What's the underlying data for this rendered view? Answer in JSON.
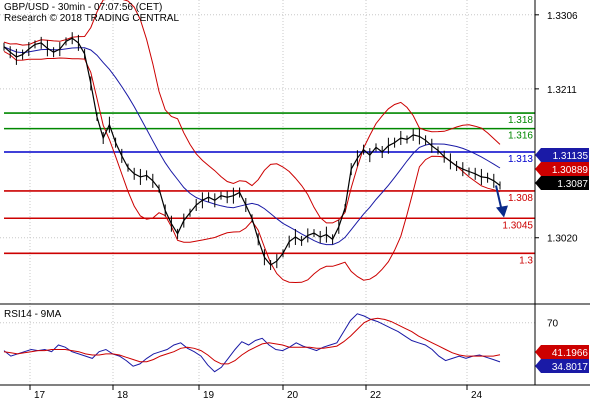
{
  "header": {
    "title_line": "GBP/USD - 30min - 07:07:56 (CET)",
    "credit_line": "Research © 2018 TRADING CENTRAL"
  },
  "rsi_panel": {
    "title": "RSI14 - 9MA"
  },
  "colors": {
    "price": "#000000",
    "bollinger": "#cc0000",
    "moving_average": "#1a1aa6",
    "resistance_green": "#008800",
    "pivot_blue": "#0000cc",
    "support_red": "#cc0000",
    "rsi_line": "#1a1aa6",
    "rsi_ma": "#cc0000",
    "arrow": "#0a2a8a",
    "grid": "#c8c8c8"
  },
  "badges": [
    {
      "value": "1.31135",
      "bg": "#1a1aa6",
      "fg": "#ffffff"
    },
    {
      "value": "1.30889",
      "bg": "#cc0000",
      "fg": "#ffffff"
    },
    {
      "value": "1.3087",
      "bg": "#000000",
      "fg": "#ffffff"
    },
    {
      "value": "41.1966",
      "bg": "#cc0000",
      "fg": "#ffffff"
    },
    {
      "value": "34.8017",
      "bg": "#1a1aa6",
      "fg": "#ffffff"
    }
  ],
  "chart_data": [
    {
      "type": "line",
      "panel": "price",
      "x_ticks": [
        "17",
        "18",
        "19",
        "20",
        "22",
        "24"
      ],
      "y_ticks": [
        "1.3306",
        "1.3211",
        "1.3020"
      ],
      "y_tick_values": [
        1.3306,
        1.3211,
        1.302
      ],
      "ylim": [
        1.2935,
        1.3325
      ],
      "grid": true,
      "levels": [
        {
          "label": "1.318",
          "value": 1.318,
          "color": "green"
        },
        {
          "label": "1.316",
          "value": 1.316,
          "color": "green"
        },
        {
          "label": "1.313",
          "value": 1.313,
          "color": "blue"
        },
        {
          "label": "1.308",
          "value": 1.308,
          "color": "red"
        },
        {
          "label": "1.3045",
          "value": 1.3045,
          "color": "red"
        },
        {
          "label": "1.3",
          "value": 1.3,
          "color": "red"
        }
      ],
      "series": [
        {
          "values": [
            1.3265,
            1.3258,
            1.3252,
            1.3255,
            1.3262,
            1.3268,
            1.327,
            1.3263,
            1.3258,
            1.3262,
            1.3272,
            1.3276,
            1.327,
            1.3256,
            1.3218,
            1.3175,
            1.3148,
            1.3165,
            1.3142,
            1.3125,
            1.311,
            1.3102,
            1.3098,
            1.31,
            1.3093,
            1.3083,
            1.3055,
            1.3038,
            1.3025,
            1.3042,
            1.3052,
            1.3062,
            1.3068,
            1.3072,
            1.3068,
            1.3074,
            1.3072,
            1.3074,
            1.3078,
            1.3062,
            1.3045,
            1.3018,
            1.2995,
            1.2985,
            1.299,
            1.3,
            1.3015,
            1.3021,
            1.3016,
            1.3023,
            1.3026,
            1.3021,
            1.3024,
            1.3018,
            1.3034,
            1.3058,
            1.3108,
            1.3122,
            1.3133,
            1.3126,
            1.3136,
            1.313,
            1.3138,
            1.3142,
            1.3148,
            1.3146,
            1.3152,
            1.315,
            1.3145,
            1.3138,
            1.3132,
            1.3124,
            1.3118,
            1.3112,
            1.3108,
            1.3105,
            1.3102,
            1.3098,
            1.3097,
            1.3093,
            1.3087
          ]
        },
        {
          "values": []
        }
      ],
      "annotations": [
        "1.31135",
        "1.30889",
        "1.3087"
      ]
    },
    {
      "type": "line",
      "panel": "rsi",
      "title": "RSI14 - 9MA",
      "y_ticks": [
        "70"
      ],
      "y_tick_values": [
        70
      ],
      "ylim": [
        15,
        85
      ],
      "series": [
        {
          "values": [
            45,
            40,
            42,
            44,
            46,
            45,
            46,
            44,
            50,
            48,
            44,
            42,
            40,
            38,
            44,
            46,
            42,
            40,
            36,
            31,
            33,
            38,
            42,
            44,
            46,
            50,
            52,
            47,
            44,
            40,
            32,
            26,
            30,
            38,
            46,
            53,
            50,
            54,
            56,
            50,
            46,
            45,
            48,
            52,
            49,
            47,
            45,
            48,
            50,
            52,
            62,
            72,
            78,
            76,
            73,
            71,
            68,
            65,
            62,
            58,
            54,
            52,
            50,
            46,
            40,
            36,
            38,
            40,
            38,
            40,
            41,
            39,
            37,
            34.8
          ]
        },
        {
          "values": [
            44,
            43,
            42,
            43,
            44,
            45,
            45,
            46,
            46,
            46,
            45,
            44,
            42,
            41,
            41,
            42,
            42,
            41,
            39,
            37,
            35,
            35,
            37,
            40,
            42,
            44,
            47,
            48,
            47,
            45,
            41,
            36,
            33,
            33,
            36,
            41,
            45,
            48,
            51,
            52,
            51,
            50,
            48,
            48,
            48,
            48,
            47,
            47,
            48,
            49,
            53,
            58,
            64,
            70,
            73,
            74,
            73,
            71,
            68,
            65,
            62,
            58,
            55,
            52,
            49,
            46,
            43,
            41,
            40,
            40,
            40,
            40,
            40,
            41.2
          ]
        }
      ],
      "annotations": [
        "41.1966",
        "34.8017"
      ]
    }
  ]
}
